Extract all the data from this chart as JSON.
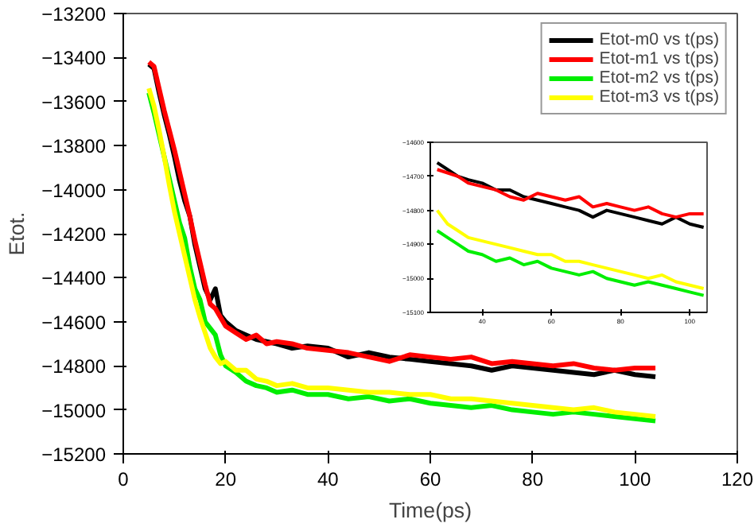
{
  "chart_data": [
    {
      "type": "line",
      "xlabel": "Time(ps)",
      "ylabel": "Etot.",
      "xlim": [
        0,
        120
      ],
      "ylim": [
        -15200,
        -13200
      ],
      "xticks": [
        0,
        20,
        40,
        60,
        80,
        100,
        120
      ],
      "yticks": [
        -15200,
        -15000,
        -14800,
        -14600,
        -14400,
        -14200,
        -14000,
        -13800,
        -13600,
        -13400,
        -13200
      ],
      "grid": false,
      "legend": "top right",
      "marker": "none",
      "line_style": "solid",
      "x": [
        5,
        6,
        7,
        8,
        9,
        10,
        11,
        12,
        13,
        14,
        15,
        16,
        17,
        18,
        19,
        20,
        22,
        24,
        26,
        28,
        30,
        33,
        36,
        40,
        44,
        48,
        52,
        56,
        60,
        64,
        68,
        72,
        76,
        80,
        84,
        88,
        92,
        96,
        100,
        104
      ],
      "series": [
        {
          "name": "Etot-m0 vs t(ps)",
          "color": "#000000",
          "values": [
            -13430,
            -13450,
            -13560,
            -13660,
            -13750,
            -13850,
            -13960,
            -14050,
            -14120,
            -14250,
            -14350,
            -14450,
            -14500,
            -14450,
            -14570,
            -14600,
            -14640,
            -14660,
            -14680,
            -14690,
            -14700,
            -14720,
            -14710,
            -14720,
            -14760,
            -14740,
            -14760,
            -14770,
            -14780,
            -14790,
            -14800,
            -14820,
            -14800,
            -14810,
            -14820,
            -14830,
            -14840,
            -14820,
            -14840,
            -14850
          ]
        },
        {
          "name": "Etot-m1 vs t(ps)",
          "color": "#ff0000",
          "values": [
            -13420,
            -13440,
            -13540,
            -13640,
            -13730,
            -13820,
            -13920,
            -14020,
            -14120,
            -14230,
            -14330,
            -14430,
            -14520,
            -14540,
            -14580,
            -14620,
            -14650,
            -14680,
            -14660,
            -14700,
            -14690,
            -14700,
            -14720,
            -14730,
            -14740,
            -14760,
            -14780,
            -14750,
            -14760,
            -14770,
            -14760,
            -14790,
            -14780,
            -14790,
            -14800,
            -14790,
            -14810,
            -14820,
            -14810,
            -14810
          ]
        },
        {
          "name": "Etot-m2 vs t(ps)",
          "color": "#00ee00",
          "values": [
            -13560,
            -13650,
            -13750,
            -13850,
            -13950,
            -14050,
            -14150,
            -14220,
            -14350,
            -14450,
            -14500,
            -14600,
            -14630,
            -14660,
            -14750,
            -14800,
            -14830,
            -14870,
            -14890,
            -14900,
            -14920,
            -14910,
            -14930,
            -14930,
            -14950,
            -14940,
            -14960,
            -14950,
            -14970,
            -14980,
            -14990,
            -14980,
            -15000,
            -15010,
            -15020,
            -15010,
            -15020,
            -15030,
            -15040,
            -15050
          ]
        },
        {
          "name": "Etot-m3 vs t(ps)",
          "color": "#ffff00",
          "values": [
            -13540,
            -13620,
            -13730,
            -13850,
            -13980,
            -14100,
            -14200,
            -14300,
            -14400,
            -14500,
            -14580,
            -14650,
            -14720,
            -14760,
            -14790,
            -14780,
            -14820,
            -14820,
            -14860,
            -14870,
            -14890,
            -14880,
            -14900,
            -14900,
            -14910,
            -14920,
            -14920,
            -14930,
            -14930,
            -14950,
            -14950,
            -14960,
            -14970,
            -14980,
            -14990,
            -15000,
            -14990,
            -15010,
            -15020,
            -15030
          ]
        }
      ]
    },
    {
      "type": "line",
      "xlim": [
        25,
        105
      ],
      "ylim": [
        -15100,
        -14600
      ],
      "xticks": [
        40,
        60,
        80,
        100
      ],
      "yticks": [
        -15100,
        -15000,
        -14900,
        -14800,
        -14700,
        -14600
      ],
      "grid": false,
      "marker": "none",
      "line_style": "solid",
      "x": [
        27,
        30,
        33,
        36,
        40,
        44,
        48,
        52,
        56,
        60,
        64,
        68,
        72,
        76,
        80,
        84,
        88,
        92,
        96,
        100,
        104
      ],
      "series": [
        {
          "color": "#000000",
          "values": [
            -14660,
            -14680,
            -14700,
            -14710,
            -14720,
            -14740,
            -14740,
            -14760,
            -14770,
            -14780,
            -14790,
            -14800,
            -14820,
            -14800,
            -14810,
            -14820,
            -14830,
            -14840,
            -14820,
            -14840,
            -14850
          ]
        },
        {
          "color": "#ff0000",
          "values": [
            -14680,
            -14690,
            -14700,
            -14720,
            -14730,
            -14740,
            -14760,
            -14770,
            -14750,
            -14760,
            -14770,
            -14760,
            -14790,
            -14780,
            -14790,
            -14800,
            -14790,
            -14810,
            -14820,
            -14810,
            -14810
          ]
        },
        {
          "color": "#00ee00",
          "values": [
            -14860,
            -14880,
            -14900,
            -14920,
            -14930,
            -14950,
            -14940,
            -14960,
            -14950,
            -14970,
            -14980,
            -14990,
            -14980,
            -15000,
            -15010,
            -15020,
            -15010,
            -15020,
            -15030,
            -15040,
            -15050
          ]
        },
        {
          "color": "#ffff00",
          "values": [
            -14800,
            -14840,
            -14860,
            -14880,
            -14890,
            -14900,
            -14910,
            -14920,
            -14930,
            -14930,
            -14950,
            -14950,
            -14960,
            -14970,
            -14980,
            -14990,
            -15000,
            -14990,
            -15010,
            -15020,
            -15030
          ]
        }
      ]
    }
  ]
}
